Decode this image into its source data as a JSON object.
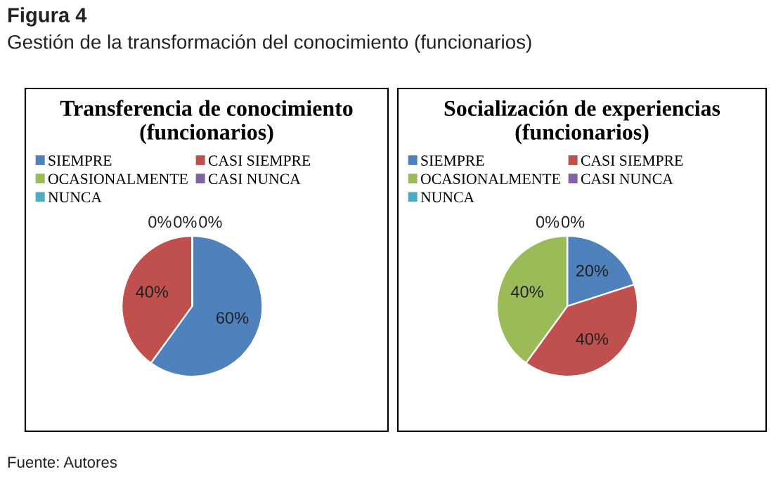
{
  "chart_data": [
    {
      "type": "pie",
      "title": "Transferencia de conocimiento\n(funcionarios)",
      "categories": [
        "SIEMPRE",
        "CASI SIEMPRE",
        "OCASIONALMENTE",
        "CASI NUNCA",
        "NUNCA"
      ],
      "values": [
        60,
        40,
        0,
        0,
        0
      ],
      "value_labels": [
        "60%",
        "40%",
        "0%",
        "0%",
        "0%"
      ],
      "colors": [
        "#4f81bd",
        "#c0504d",
        "#9bbb59",
        "#8064a2",
        "#4bacc6"
      ],
      "legend": "top",
      "annotations": [
        "Figura 4",
        "Gestión de la transformación del conocimiento (funcionarios)",
        "Fuente: Autores"
      ]
    },
    {
      "type": "pie",
      "title": "Socialización de experiencias\n(funcionarios)",
      "categories": [
        "SIEMPRE",
        "CASI SIEMPRE",
        "OCASIONALMENTE",
        "CASI NUNCA",
        "NUNCA"
      ],
      "values": [
        20,
        40,
        40,
        0,
        0
      ],
      "value_labels": [
        "20%",
        "40%",
        "40%",
        "0%",
        "0%"
      ],
      "colors": [
        "#4f81bd",
        "#c0504d",
        "#9bbb59",
        "#8064a2",
        "#4bacc6"
      ],
      "legend": "top"
    }
  ]
}
